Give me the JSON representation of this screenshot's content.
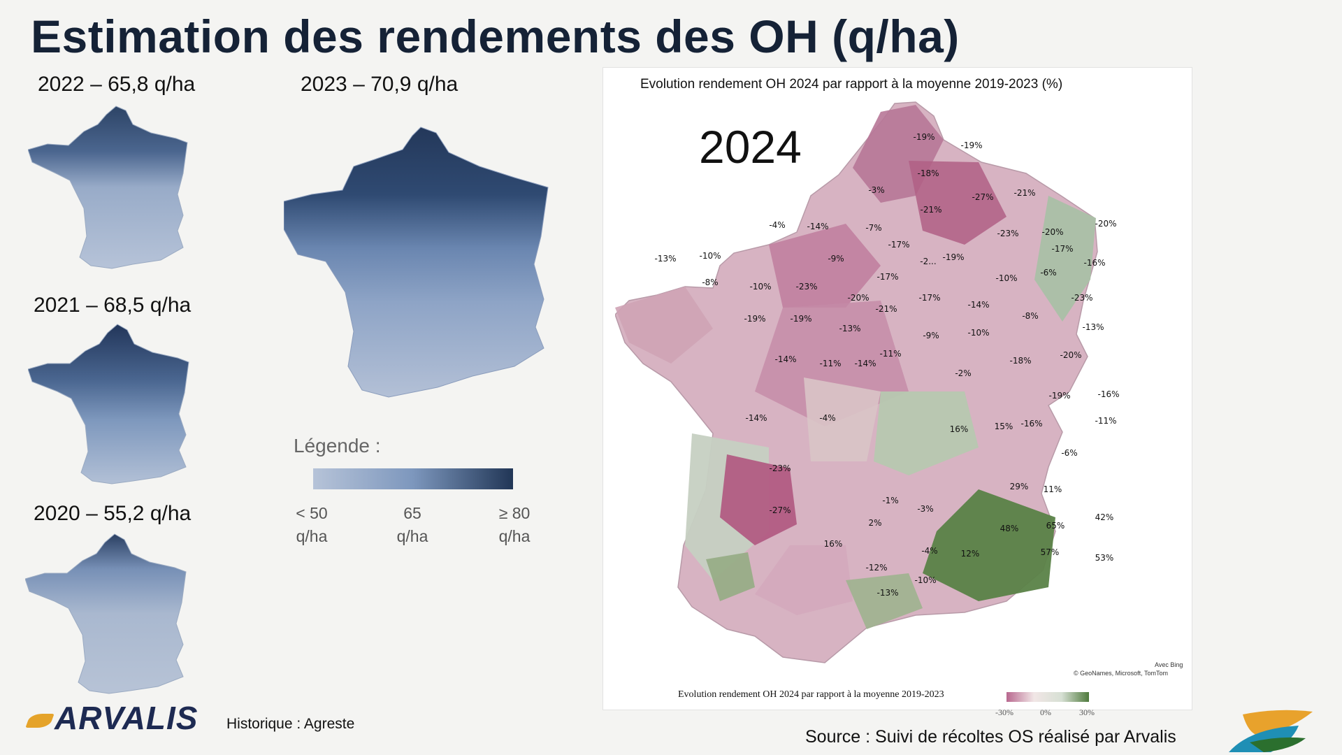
{
  "title": "Estimation des rendements des OH (q/ha)",
  "maps": [
    {
      "label": "2022 – 65,8 q/ha"
    },
    {
      "label": "2023 – 70,9 q/ha"
    },
    {
      "label": "2021 – 68,5 q/ha"
    },
    {
      "label": "2020 – 55,2 q/ha"
    }
  ],
  "legend": {
    "title": "Légende :",
    "ticks": [
      {
        "value": "< 50",
        "unit": "q/ha"
      },
      {
        "value": "65",
        "unit": "q/ha"
      },
      {
        "value": "≥ 80",
        "unit": "q/ha"
      }
    ],
    "colors": [
      "#b6c3d8",
      "#7d97bd",
      "#213656"
    ]
  },
  "panel": {
    "title": "Evolution rendement OH 2024 par rapport à la moyenne 2019-2023 (%)",
    "year": "2024",
    "bottom_legend_title": "Evolution rendement OH 2024 par rapport à la moyenne 2019-2023",
    "bottom_ticks": [
      "-30%",
      "0%",
      "30%"
    ],
    "credit_line1": "Avec Bing",
    "credit_line2": "© GeoNames, Microsoft, TomTom",
    "colors": {
      "negative": "#b8688f",
      "neutral": "#f1e6e6",
      "positive": "#4f7a3d"
    },
    "departments": [
      {
        "label": "-19%",
        "v": -19
      },
      {
        "label": "-19%",
        "v": -19
      },
      {
        "label": "-18%",
        "v": -18
      },
      {
        "label": "-3%",
        "v": -3
      },
      {
        "label": "-21%",
        "v": -21
      },
      {
        "label": "-27%",
        "v": -27
      },
      {
        "label": "-21%",
        "v": -21
      },
      {
        "label": "-4%",
        "v": -4
      },
      {
        "label": "-14%",
        "v": -14
      },
      {
        "label": "-7%",
        "v": -7
      },
      {
        "label": "-17%",
        "v": -17
      },
      {
        "label": "-23%",
        "v": -23
      },
      {
        "label": "-20%",
        "v": -20
      },
      {
        "label": "-20%",
        "v": -20
      },
      {
        "label": "-17%",
        "v": -17
      },
      {
        "label": "-13%",
        "v": -13
      },
      {
        "label": "-10%",
        "v": -10
      },
      {
        "label": "-9%",
        "v": -9
      },
      {
        "label": "-2...",
        "v": -2
      },
      {
        "label": "-19%",
        "v": -19
      },
      {
        "label": "-8%",
        "v": -8
      },
      {
        "label": "-10%",
        "v": -10
      },
      {
        "label": "-23%",
        "v": -23
      },
      {
        "label": "-17%",
        "v": -17
      },
      {
        "label": "-10%",
        "v": -10
      },
      {
        "label": "-6%",
        "v": -6
      },
      {
        "label": "-16%",
        "v": -16
      },
      {
        "label": "-20%",
        "v": -20
      },
      {
        "label": "-17%",
        "v": -17
      },
      {
        "label": "-14%",
        "v": -14
      },
      {
        "label": "-23%",
        "v": -23
      },
      {
        "label": "-19%",
        "v": -19
      },
      {
        "label": "-19%",
        "v": -19
      },
      {
        "label": "-21%",
        "v": -21
      },
      {
        "label": "-8%",
        "v": -8
      },
      {
        "label": "-13%",
        "v": -13
      },
      {
        "label": "-13%",
        "v": -13
      },
      {
        "label": "-9%",
        "v": -9
      },
      {
        "label": "-10%",
        "v": -10
      },
      {
        "label": "-14%",
        "v": -14
      },
      {
        "label": "-11%",
        "v": -11
      },
      {
        "label": "-18%",
        "v": -18
      },
      {
        "label": "-20%",
        "v": -20
      },
      {
        "label": "-11%",
        "v": -11
      },
      {
        "label": "-14%",
        "v": -14
      },
      {
        "label": "-2%",
        "v": -2
      },
      {
        "label": "-19%",
        "v": -19
      },
      {
        "label": "-16%",
        "v": -16
      },
      {
        "label": "-14%",
        "v": -14
      },
      {
        "label": "-4%",
        "v": -4
      },
      {
        "label": "16%",
        "v": 16
      },
      {
        "label": "15%",
        "v": 15
      },
      {
        "label": "-16%",
        "v": -16
      },
      {
        "label": "-11%",
        "v": -11
      },
      {
        "label": "-6%",
        "v": -6
      },
      {
        "label": "-23%",
        "v": -23
      },
      {
        "label": "29%",
        "v": 29
      },
      {
        "label": "11%",
        "v": 11
      },
      {
        "label": "-1%",
        "v": -1
      },
      {
        "label": "-27%",
        "v": -27
      },
      {
        "label": "-3%",
        "v": -3
      },
      {
        "label": "2%",
        "v": 2
      },
      {
        "label": "48%",
        "v": 48
      },
      {
        "label": "65%",
        "v": 65
      },
      {
        "label": "42%",
        "v": 42
      },
      {
        "label": "16%",
        "v": 16
      },
      {
        "label": "-4%",
        "v": -4
      },
      {
        "label": "12%",
        "v": 12
      },
      {
        "label": "57%",
        "v": 57
      },
      {
        "label": "53%",
        "v": 53
      },
      {
        "label": "-12%",
        "v": -12
      },
      {
        "label": "-10%",
        "v": -10
      },
      {
        "label": "-13%",
        "v": -13
      }
    ]
  },
  "footer": {
    "logo": "ARVALIS",
    "history": "Historique : Agreste",
    "source": "Source : Suivi de récoltes OS réalisé par Arvalis"
  }
}
